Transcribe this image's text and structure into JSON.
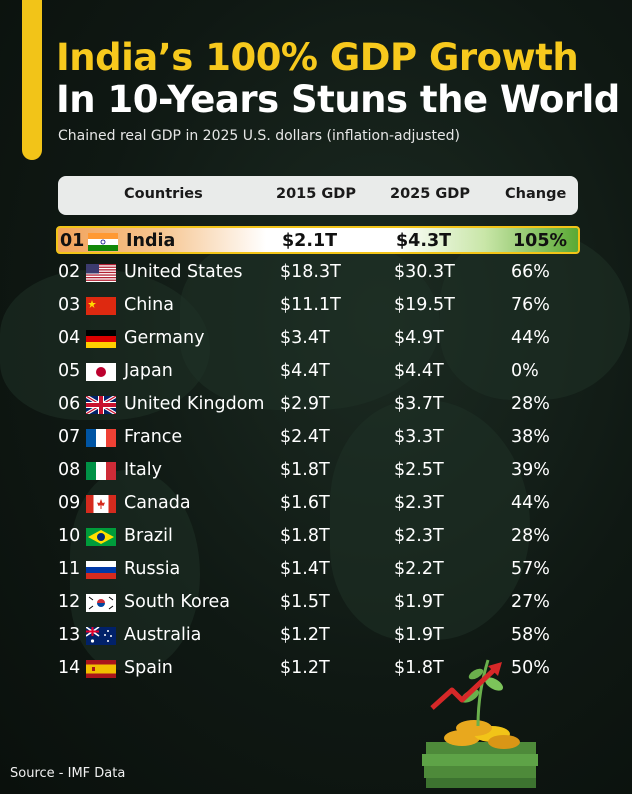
{
  "title_line1": "India’s 100% GDP Growth",
  "title_line2": "In 10-Years Stuns the World",
  "subtitle": "Chained real GDP in 2025 U.S. dollars (inflation-adjusted)",
  "table": {
    "headers": {
      "countries": "Countries",
      "gdp2015": "2015 GDP",
      "gdp2025": "2025 GDP",
      "change": "Change"
    },
    "rows": [
      {
        "rank": "01",
        "country": "India",
        "flag": "india-flag",
        "gdp2015": "$2.1T",
        "gdp2025": "$4.3T",
        "change": "105%"
      },
      {
        "rank": "02",
        "country": "United States",
        "flag": "us-flag",
        "gdp2015": "$18.3T",
        "gdp2025": "$30.3T",
        "change": "66%"
      },
      {
        "rank": "03",
        "country": "China",
        "flag": "china-flag",
        "gdp2015": "$11.1T",
        "gdp2025": "$19.5T",
        "change": "76%"
      },
      {
        "rank": "04",
        "country": "Germany",
        "flag": "germany-flag",
        "gdp2015": "$3.4T",
        "gdp2025": "$4.9T",
        "change": "44%"
      },
      {
        "rank": "05",
        "country": "Japan",
        "flag": "japan-flag",
        "gdp2015": "$4.4T",
        "gdp2025": "$4.4T",
        "change": "0%"
      },
      {
        "rank": "06",
        "country": "United Kingdom",
        "flag": "uk-flag",
        "gdp2015": "$2.9T",
        "gdp2025": "$3.7T",
        "change": "28%"
      },
      {
        "rank": "07",
        "country": "France",
        "flag": "france-flag",
        "gdp2015": "$2.4T",
        "gdp2025": "$3.3T",
        "change": "38%"
      },
      {
        "rank": "08",
        "country": "Italy",
        "flag": "italy-flag",
        "gdp2015": "$1.8T",
        "gdp2025": "$2.5T",
        "change": "39%"
      },
      {
        "rank": "09",
        "country": "Canada",
        "flag": "canada-flag",
        "gdp2015": "$1.6T",
        "gdp2025": "$2.3T",
        "change": "44%"
      },
      {
        "rank": "10",
        "country": "Brazil",
        "flag": "brazil-flag",
        "gdp2015": "$1.8T",
        "gdp2025": "$2.3T",
        "change": "28%"
      },
      {
        "rank": "11",
        "country": "Russia",
        "flag": "russia-flag",
        "gdp2015": "$1.4T",
        "gdp2025": "$2.2T",
        "change": "57%"
      },
      {
        "rank": "12",
        "country": "South Korea",
        "flag": "south-korea-flag",
        "gdp2015": "$1.5T",
        "gdp2025": "$1.9T",
        "change": "27%"
      },
      {
        "rank": "13",
        "country": "Australia",
        "flag": "australia-flag",
        "gdp2015": "$1.2T",
        "gdp2025": "$1.9T",
        "change": "58%"
      },
      {
        "rank": "14",
        "country": "Spain",
        "flag": "spain-flag",
        "gdp2015": "$1.2T",
        "gdp2025": "$1.8T",
        "change": "50%"
      }
    ]
  },
  "source": "Source - IMF Data",
  "colors": {
    "accent_yellow": "#f2c418",
    "highlight_green": "#5aa934",
    "header_bg": "#e9ebea"
  }
}
